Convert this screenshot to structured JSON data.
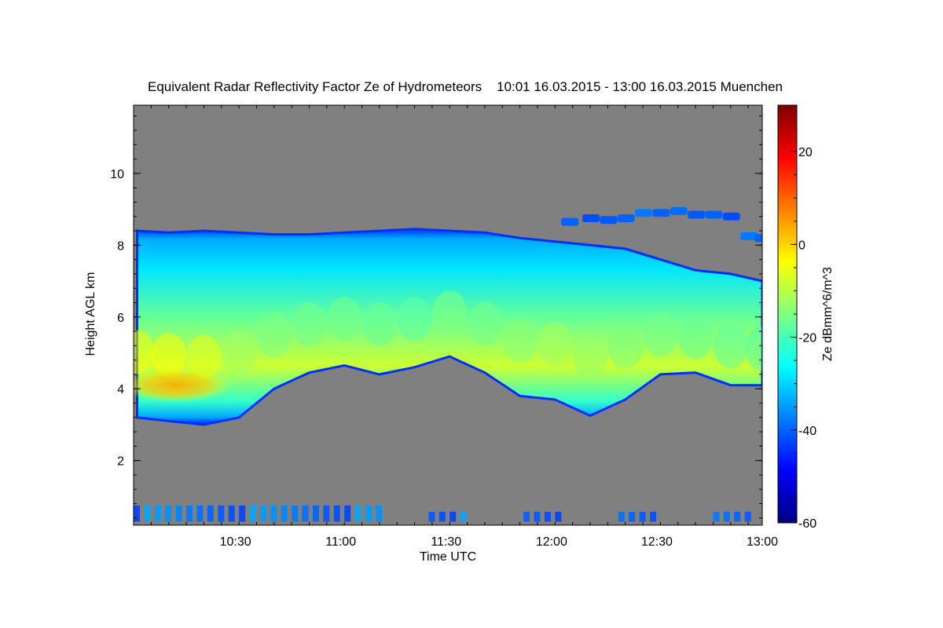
{
  "chart_data": {
    "type": "heatmap",
    "title": "Equivalent Radar Reflectivity Factor Ze of Hydrometeors    10:01 16.03.2015 - 13:00 16.03.2015 Muenchen",
    "xlabel": "Time UTC",
    "ylabel": "Height AGL km",
    "x_ticks": [
      "10:30",
      "11:00",
      "11:30",
      "12:00",
      "12:30",
      "13:00"
    ],
    "y_ticks": [
      2,
      4,
      6,
      8,
      10
    ],
    "xlim": [
      "10:01",
      "13:00"
    ],
    "ylim": [
      0.2,
      11.9
    ],
    "no_data_color": "#808080",
    "colorbar": {
      "label": "Ze dBmm^6/m^3",
      "range": [
        -60,
        30
      ],
      "ticks": [
        -60,
        -40,
        -20,
        0,
        20
      ],
      "colormap": "jet"
    },
    "cloud_layer": {
      "time_min": [
        1,
        10,
        20,
        30,
        40,
        50,
        60,
        70,
        80,
        90,
        100,
        110,
        120,
        130,
        140,
        150,
        160,
        170,
        179
      ],
      "top_km": [
        8.4,
        8.35,
        8.4,
        8.35,
        8.3,
        8.3,
        8.35,
        8.4,
        8.45,
        8.4,
        8.35,
        8.2,
        8.1,
        8.0,
        7.9,
        7.6,
        7.3,
        7.2,
        7.0
      ],
      "base_km": [
        3.2,
        3.1,
        3.0,
        3.2,
        4.0,
        4.45,
        4.65,
        4.4,
        4.6,
        4.9,
        4.45,
        3.8,
        3.7,
        3.25,
        3.7,
        4.4,
        4.45,
        4.1,
        4.1
      ],
      "max_ze_dbz": [
        -5,
        -4,
        -6,
        -12,
        -15,
        -16,
        -16,
        -17,
        -18,
        -15,
        -16,
        -14,
        -12,
        -13,
        -15,
        -16,
        -17,
        -18,
        -19
      ]
    },
    "upper_thin_layer": {
      "time_min": [
        124,
        130,
        135,
        140,
        145,
        150,
        155,
        160,
        165,
        170,
        175,
        179
      ],
      "height_km": [
        8.65,
        8.75,
        8.7,
        8.75,
        8.9,
        8.9,
        8.95,
        8.85,
        8.85,
        8.8,
        8.25,
        8.2
      ],
      "ze_dbz": [
        -40,
        -42,
        -41,
        -40,
        -38,
        -40,
        -39,
        -41,
        -40,
        -42,
        -38,
        -40
      ]
    },
    "near_surface_clutter": {
      "time_range": [
        "10:01",
        "13:00"
      ],
      "height_range_km": [
        0.3,
        0.8
      ],
      "ze_dbz": -38
    }
  }
}
